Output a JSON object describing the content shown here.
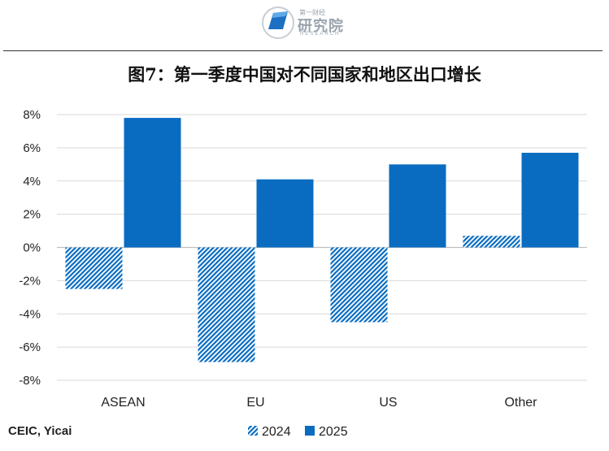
{
  "header": {
    "logo_small_text": "第一财经",
    "logo_main_text": "研究院",
    "logo_en_text": "RESEARCH"
  },
  "title": "图7：第一季度中国对不同国家和地区出口增长",
  "source": "CEIC, Yicai",
  "colors": {
    "accent": "#0a6cc1",
    "grid": "#d9d9d9",
    "axis": "#bfbfbf",
    "text": "#222222"
  },
  "chart_data": {
    "type": "bar",
    "categories": [
      "ASEAN",
      "EU",
      "US",
      "Other"
    ],
    "series": [
      {
        "name": "2024",
        "values": [
          -2.5,
          -6.9,
          -4.5,
          0.7
        ],
        "pattern": "hatched"
      },
      {
        "name": "2025",
        "values": [
          7.8,
          4.1,
          5.0,
          5.7
        ],
        "pattern": "solid"
      }
    ],
    "yticks": [
      "-8%",
      "-6%",
      "-4%",
      "-2%",
      "0%",
      "2%",
      "4%",
      "6%",
      "8%"
    ],
    "ylim": [
      -8,
      8
    ],
    "grid": true,
    "legend": "bottom",
    "xlabel": "",
    "ylabel": ""
  }
}
